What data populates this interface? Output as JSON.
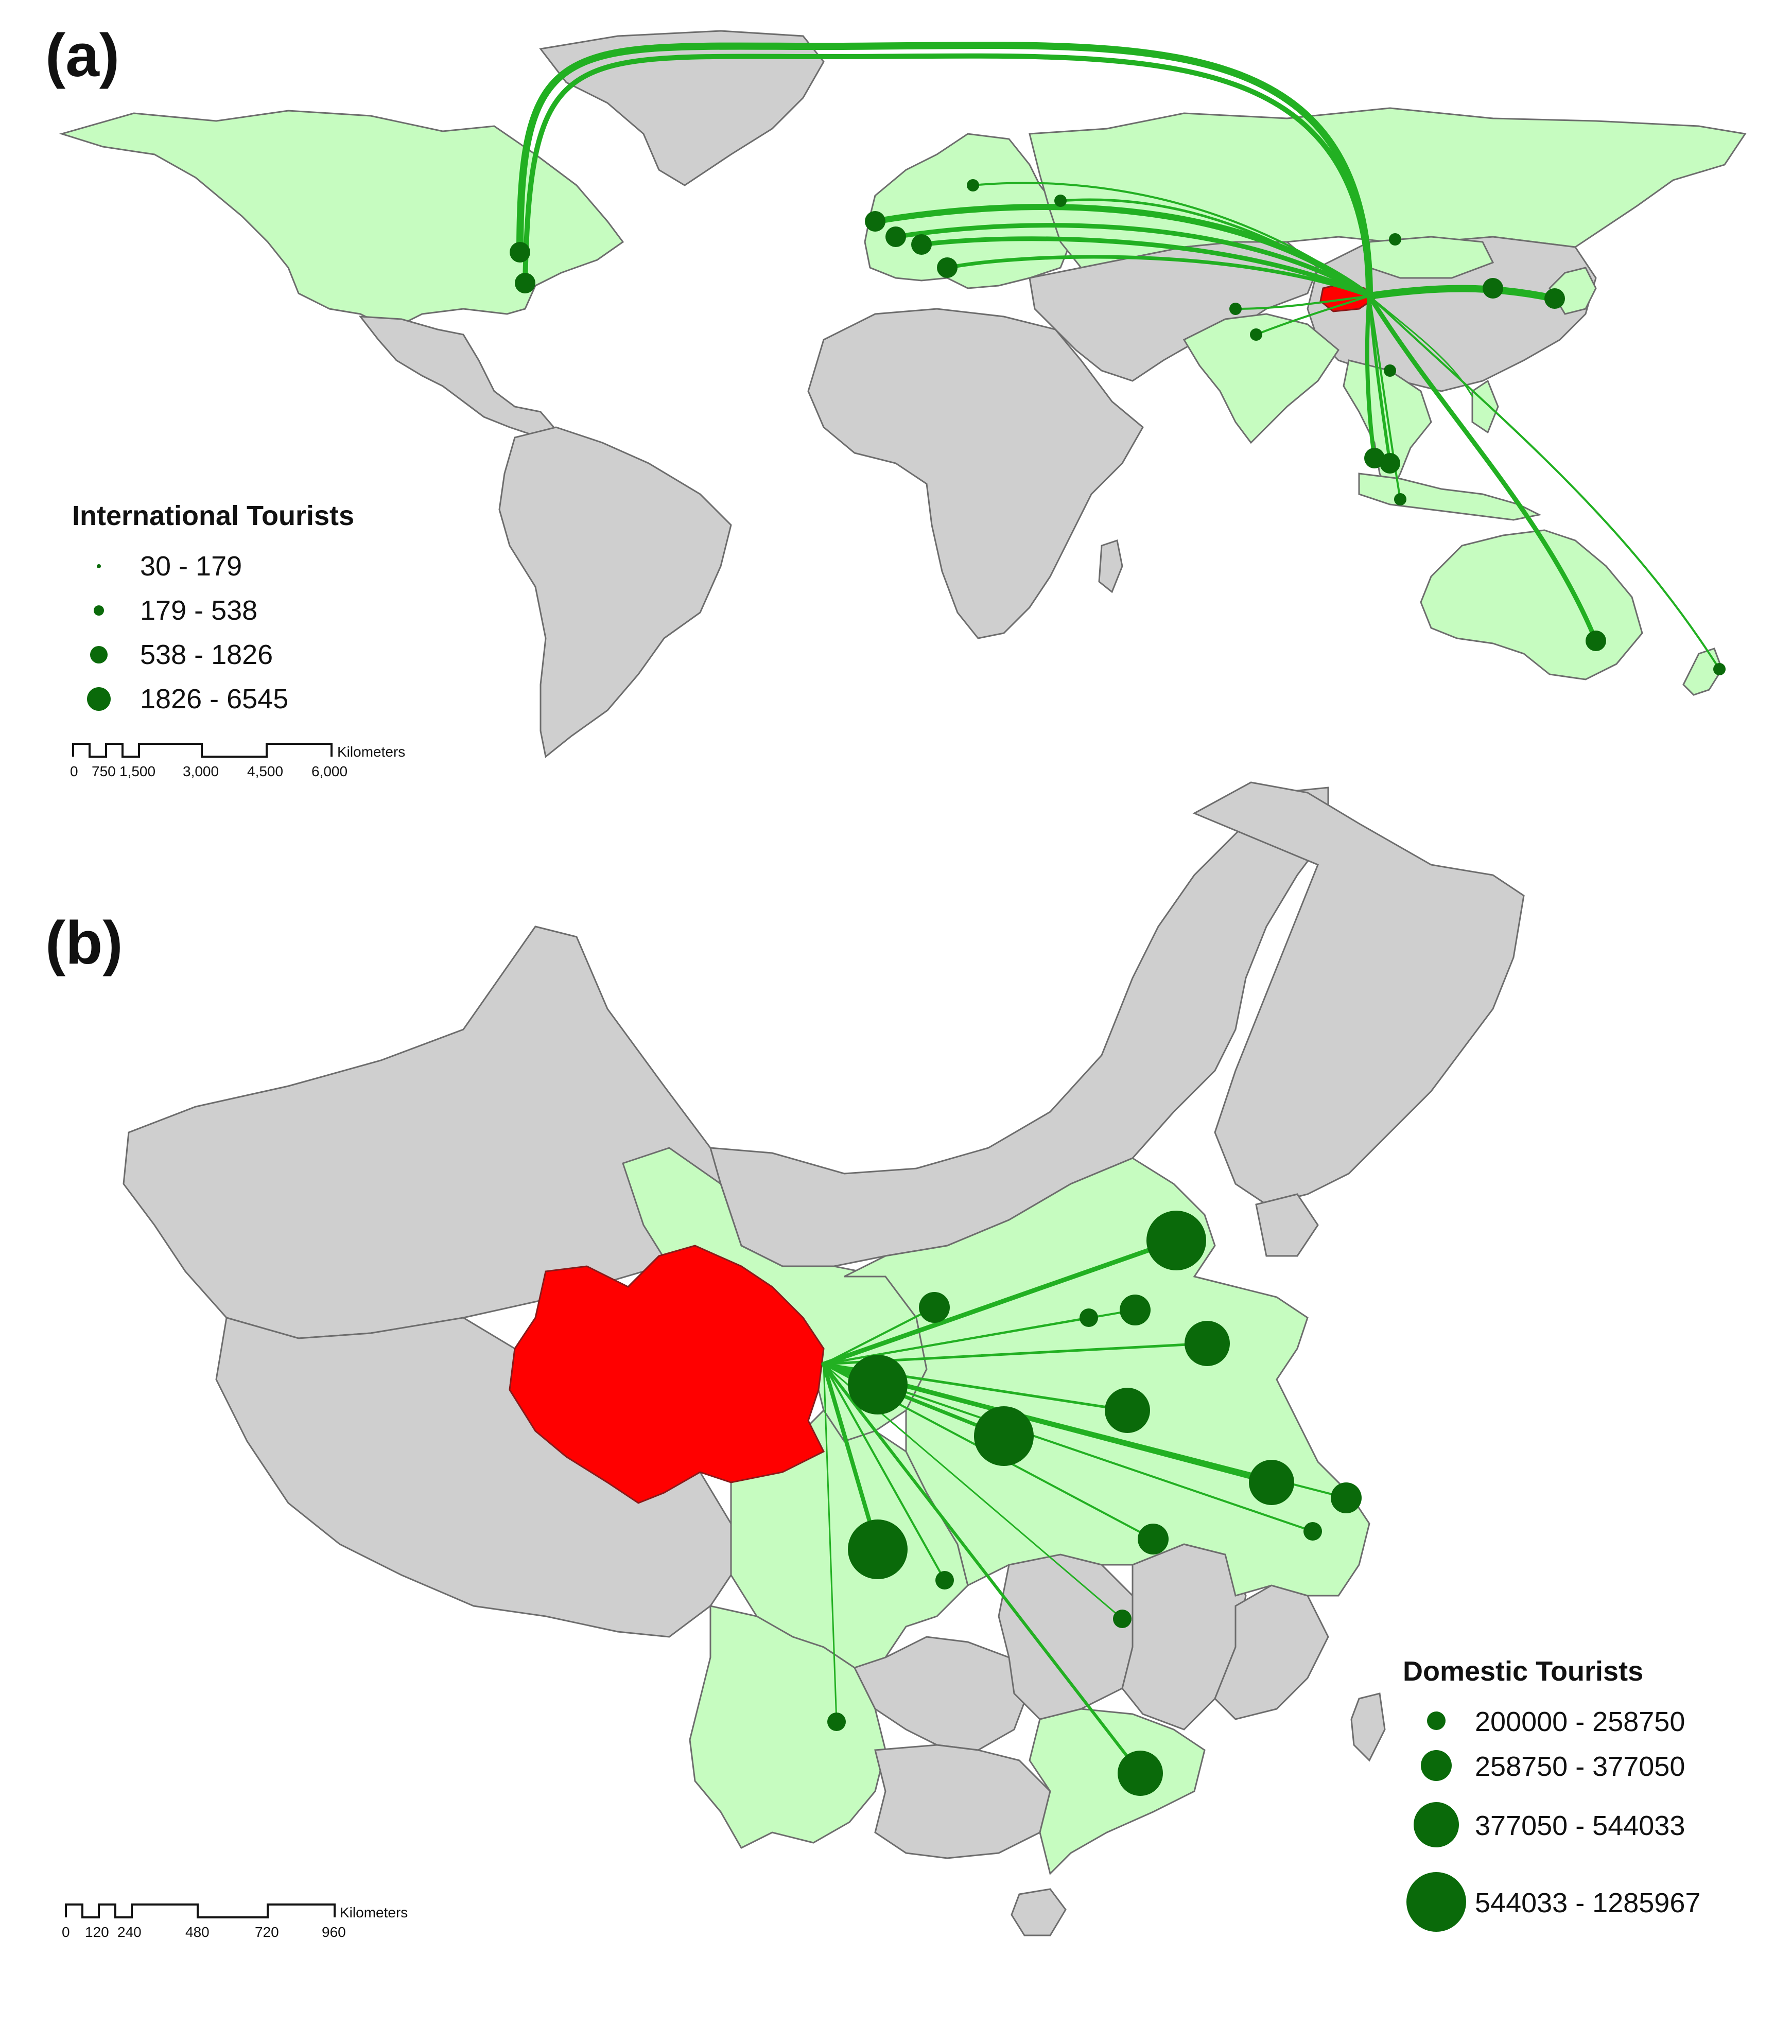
{
  "panel_a": {
    "label": "(a)",
    "legend_title": "International Tourists",
    "legend_classes": [
      "30 - 179",
      "179 - 538",
      "538 - 1826",
      "1826 - 6545"
    ],
    "scale_unit": "Kilometers",
    "scale_ticks": [
      "0",
      "750",
      "1,500",
      "3,000",
      "4,500",
      "6,000"
    ]
  },
  "panel_b": {
    "label": "(b)",
    "legend_title": "Domestic Tourists",
    "legend_classes": [
      "200000 - 258750",
      "258750 - 377050",
      "377050 - 544033",
      "544033 - 1285967"
    ],
    "scale_unit": "Kilometers",
    "scale_ticks": [
      "0",
      "120",
      "240",
      "480",
      "720",
      "960"
    ]
  },
  "colors": {
    "origin_region": "#ff0000",
    "source_region": "#c6fcc0",
    "other_land": "#cfcfcf",
    "flow_line": "#22b022",
    "symbol": "#0a6a0a"
  }
}
